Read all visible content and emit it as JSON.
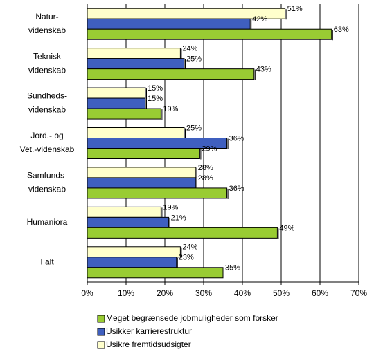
{
  "chart_data": {
    "type": "hbar",
    "categories": [
      [
        "Natur-",
        "videnskab"
      ],
      [
        "Teknisk",
        "videnskab"
      ],
      [
        "Sundheds-",
        "videnskab"
      ],
      [
        "Jord.- og",
        "Vet.-videnskab"
      ],
      [
        "Samfunds-",
        "videnskab"
      ],
      [
        "Humaniora"
      ],
      [
        "I alt"
      ]
    ],
    "series": [
      {
        "name": "Meget begrænsede jobmuligheder som forsker",
        "color": "#99cc33",
        "values": [
          63,
          43,
          19,
          29,
          36,
          49,
          35
        ],
        "value_labels": [
          "63%",
          "43%",
          "19%",
          "29%",
          "36%",
          "49%",
          "35%"
        ]
      },
      {
        "name": "Usikker karrierestruktur",
        "color": "#3f5fbf",
        "values": [
          42,
          25,
          15,
          36,
          28,
          21,
          23
        ],
        "value_labels": [
          "42%",
          "25%",
          "15%",
          "36%",
          "28%",
          "21%",
          "23%"
        ]
      },
      {
        "name": "Usikre fremtidsudsigter",
        "color": "#ffffcc",
        "values": [
          51,
          24,
          15,
          25,
          28,
          19,
          24
        ],
        "value_labels": [
          "51%",
          "24%",
          "15%",
          "25%",
          "28%",
          "19%",
          "24%"
        ]
      }
    ],
    "xlim": [
      0,
      70
    ],
    "xticks": [
      {
        "value": 0,
        "label": "0%"
      },
      {
        "value": 10,
        "label": "10%"
      },
      {
        "value": 20,
        "label": "20%"
      },
      {
        "value": 30,
        "label": "30%"
      },
      {
        "value": 40,
        "label": "40%"
      },
      {
        "value": 50,
        "label": "50%"
      },
      {
        "value": 60,
        "label": "60%"
      },
      {
        "value": 70,
        "label": "70%"
      }
    ],
    "grid": true
  }
}
